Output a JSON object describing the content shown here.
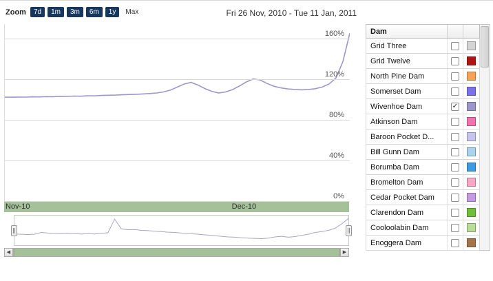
{
  "header": {
    "zoom_label": "Zoom",
    "zoom_buttons": [
      {
        "label": "7d",
        "selected": true
      },
      {
        "label": "1m",
        "selected": true
      },
      {
        "label": "3m",
        "selected": true
      },
      {
        "label": "6m",
        "selected": true
      },
      {
        "label": "1y",
        "selected": true
      },
      {
        "label": "Max",
        "selected": false
      }
    ],
    "date_range": "Fri 26 Nov, 2010 - Tue 11 Jan, 2011"
  },
  "chart_data": {
    "type": "line",
    "title": "",
    "xlabel": "",
    "ylabel": "",
    "ylim": [
      0,
      175
    ],
    "grid": true,
    "legend_position": "right-panel",
    "x_range_labels": [
      "Fri 26 Nov, 2010",
      "Tue 11 Jan, 2011"
    ],
    "yticks": [
      {
        "value": 0,
        "label": "0%"
      },
      {
        "value": 40,
        "label": "40%"
      },
      {
        "value": 80,
        "label": "80%"
      },
      {
        "value": 120,
        "label": "120%"
      },
      {
        "value": 160,
        "label": "160%"
      }
    ],
    "xaxis_labels": [
      {
        "label": "Nov-10",
        "pos": 0.004
      },
      {
        "label": "Dec-10",
        "pos": 0.66
      }
    ],
    "series": [
      {
        "name": "Wivenhoe Dam",
        "color": "#9d96cb",
        "x": [
          0,
          2,
          4,
          6,
          8,
          10,
          12,
          14,
          16,
          18,
          20,
          22,
          24,
          26,
          28,
          30,
          32,
          34,
          36,
          38,
          40,
          42,
          44,
          46,
          48,
          50,
          52,
          54,
          56,
          58,
          60,
          62,
          64,
          66,
          68,
          70,
          72,
          74,
          76,
          78,
          80,
          82,
          84,
          86,
          88,
          90,
          92,
          94,
          96,
          98,
          100
        ],
        "values": [
          103,
          103,
          103.2,
          103.1,
          103.4,
          103.3,
          103.6,
          103.5,
          103.9,
          103.8,
          104.1,
          104,
          104.4,
          104.3,
          104.7,
          104.9,
          105.1,
          105.4,
          105.7,
          105.9,
          106.2,
          106.6,
          107.2,
          108.2,
          110,
          113,
          116,
          117.6,
          115,
          111.5,
          108.8,
          107.2,
          108.2,
          110.5,
          114,
          118,
          121,
          120,
          116.5,
          113.8,
          112.2,
          111.2,
          110.6,
          110.3,
          110.6,
          111.4,
          113,
          116,
          122,
          138,
          166
        ]
      }
    ]
  },
  "navigator": {
    "color": "#a9a4c4",
    "ylim": [
      0,
      100
    ],
    "x": [
      0,
      2,
      4,
      6,
      8,
      10,
      12,
      14,
      16,
      18,
      20,
      22,
      24,
      26,
      28,
      30,
      32,
      34,
      36,
      38,
      40,
      42,
      44,
      46,
      48,
      50,
      52,
      54,
      56,
      58,
      60,
      62,
      64,
      66,
      68,
      70,
      72,
      74,
      76,
      78,
      80,
      82,
      84,
      86,
      88,
      90,
      92,
      94,
      96,
      98,
      100
    ],
    "values": [
      38,
      37,
      36,
      37,
      43,
      41,
      40,
      39,
      40,
      39,
      38,
      39,
      38,
      40,
      42,
      88,
      55,
      52,
      53,
      50,
      49,
      47,
      46,
      44,
      43,
      41,
      40,
      38,
      36,
      34,
      32,
      30,
      28,
      27,
      25,
      24,
      23,
      22,
      24,
      28,
      30,
      27,
      29,
      33,
      37,
      43,
      46,
      50,
      57,
      72,
      90
    ]
  },
  "scrollbar": {
    "left_arrow": "◀",
    "right_arrow": "▶"
  },
  "legend": {
    "header": "Dam",
    "items": [
      {
        "name": "Grid Three",
        "color": "#d4d4d4",
        "checked": false
      },
      {
        "name": "Grid Twelve",
        "color": "#b01513",
        "checked": false
      },
      {
        "name": "North Pine Dam",
        "color": "#f5a455",
        "checked": false
      },
      {
        "name": "Somerset Dam",
        "color": "#7b72e9",
        "checked": false
      },
      {
        "name": "Wivenhoe Dam",
        "color": "#9d96cb",
        "checked": true
      },
      {
        "name": "Atkinson Dam",
        "color": "#f272ae",
        "checked": false
      },
      {
        "name": "Baroon Pocket D...",
        "color": "#c7c5ee",
        "checked": false
      },
      {
        "name": "Bill Gunn Dam",
        "color": "#a9d3ee",
        "checked": false
      },
      {
        "name": "Borumba Dam",
        "color": "#3d9be0",
        "checked": false
      },
      {
        "name": "Bromelton Dam",
        "color": "#f9a7c6",
        "checked": false
      },
      {
        "name": "Cedar Pocket Dam",
        "color": "#c49be2",
        "checked": false
      },
      {
        "name": "Clarendon Dam",
        "color": "#6fbf3a",
        "checked": false
      },
      {
        "name": "Cooloolabin Dam",
        "color": "#b8dd96",
        "checked": false
      },
      {
        "name": "Enoggera Dam",
        "color": "#a3744c",
        "checked": false
      }
    ]
  }
}
